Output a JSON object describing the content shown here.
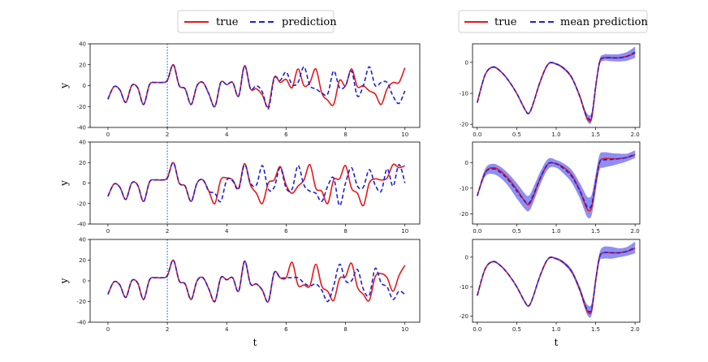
{
  "legends": {
    "left": {
      "true": "true",
      "prediction": "prediction"
    },
    "right": {
      "true": "true",
      "mean_prediction": "mean prediction"
    }
  },
  "colors": {
    "true": "#e41a1c",
    "prediction": "#1f1fd6",
    "band": "#7b7bf0",
    "divider": "#1f77b4"
  },
  "chart_data": [
    {
      "type": "line",
      "panel": "left-1",
      "xlabel": "",
      "ylabel": "y",
      "xlim": [
        -0.6,
        10.5
      ],
      "ylim": [
        -40,
        40
      ],
      "xticks": [
        "0",
        "2",
        "4",
        "6",
        "8",
        "10"
      ],
      "yticks": [
        "-40",
        "-20",
        "0",
        "20",
        "40"
      ],
      "vline_x": 2,
      "true_x": [
        0,
        0.2,
        0.4,
        0.6,
        0.8,
        1.0,
        1.2,
        1.4,
        1.6,
        1.8,
        2.0,
        2.2,
        2.4,
        2.6,
        2.8,
        3.0,
        3.2,
        3.4,
        3.6,
        3.8,
        4.0,
        4.2,
        4.4,
        4.6,
        4.8,
        5.0,
        5.2,
        5.4,
        5.6,
        5.8,
        6.0,
        6.2,
        6.4,
        6.6,
        6.8,
        7.0,
        7.2,
        7.4,
        7.6,
        7.8,
        8.0,
        8.2,
        8.4,
        8.6,
        8.8,
        9.0,
        9.2,
        9.4,
        9.6,
        9.8,
        10.0
      ],
      "true_y": [
        -13,
        -1,
        -4,
        -16,
        0,
        -2,
        -18,
        1,
        3,
        3,
        5,
        20,
        0,
        -3,
        -18,
        0,
        3,
        -8,
        -20,
        3,
        1,
        3,
        -10,
        19,
        -3,
        -3,
        -9,
        -20,
        8,
        3,
        6,
        -2,
        16,
        0,
        3,
        16,
        -7,
        -14,
        -18,
        5,
        0,
        16,
        -1,
        0,
        -5,
        -8,
        -18,
        -3,
        3,
        3,
        17
      ],
      "pred_x": [
        0,
        0.2,
        0.4,
        0.6,
        0.8,
        1.0,
        1.2,
        1.4,
        1.6,
        1.8,
        2.0,
        2.2,
        2.4,
        2.6,
        2.8,
        3.0,
        3.2,
        3.4,
        3.6,
        3.8,
        4.0,
        4.2,
        4.4,
        4.6,
        4.8,
        5.0,
        5.2,
        5.4,
        5.6,
        5.8,
        6.0,
        6.2,
        6.4,
        6.6,
        6.8,
        7.0,
        7.2,
        7.4,
        7.6,
        7.8,
        8.0,
        8.2,
        8.4,
        8.6,
        8.8,
        9.0,
        9.2,
        9.4,
        9.6,
        9.8,
        10.0
      ],
      "pred_y": [
        -13,
        -1,
        -4,
        -16,
        0,
        -2,
        -18,
        1,
        3,
        3,
        5,
        20,
        0,
        -3,
        -18,
        0,
        3,
        -8,
        -20,
        3,
        1,
        3,
        -10,
        19,
        -3,
        0,
        -6,
        -22,
        7,
        5,
        13,
        1,
        3,
        18,
        0,
        -3,
        -7,
        -8,
        14,
        -2,
        0,
        14,
        -10,
        0,
        18,
        0,
        3,
        3,
        -10,
        -17,
        -5
      ]
    },
    {
      "type": "line",
      "panel": "left-2",
      "xlabel": "",
      "ylabel": "y",
      "xlim": [
        -0.6,
        10.5
      ],
      "ylim": [
        -40,
        40
      ],
      "xticks": [
        "0",
        "2",
        "4",
        "6",
        "8",
        "10"
      ],
      "yticks": [
        "-40",
        "-20",
        "0",
        "20",
        "40"
      ],
      "vline_x": 2,
      "true_x": [
        0,
        0.2,
        0.4,
        0.6,
        0.8,
        1.0,
        1.2,
        1.4,
        1.6,
        1.8,
        2.0,
        2.2,
        2.4,
        2.6,
        2.8,
        3.0,
        3.2,
        3.4,
        3.6,
        3.8,
        4.0,
        4.2,
        4.4,
        4.6,
        4.8,
        5.0,
        5.2,
        5.4,
        5.6,
        5.8,
        6.0,
        6.2,
        6.4,
        6.6,
        6.8,
        7.0,
        7.2,
        7.4,
        7.6,
        7.8,
        8.0,
        8.2,
        8.4,
        8.6,
        8.8,
        9.0,
        9.2,
        9.4,
        9.6,
        9.8,
        10.0
      ],
      "true_y": [
        -13,
        -1,
        -4,
        -16,
        0,
        -2,
        -18,
        1,
        3,
        3,
        5,
        20,
        0,
        -3,
        -18,
        0,
        3,
        -8,
        -20,
        3,
        5,
        3,
        -5,
        19,
        -2,
        -10,
        -20,
        0,
        3,
        16,
        -2,
        -10,
        -3,
        3,
        18,
        -5,
        -8,
        -20,
        3,
        4,
        17,
        -5,
        -10,
        -22,
        0,
        4,
        3,
        5,
        18,
        15,
        17
      ],
      "pred_x": [
        0,
        0.2,
        0.4,
        0.6,
        0.8,
        1.0,
        1.2,
        1.4,
        1.6,
        1.8,
        2.0,
        2.2,
        2.4,
        2.6,
        2.8,
        3.0,
        3.2,
        3.4,
        3.6,
        3.8,
        4.0,
        4.2,
        4.4,
        4.6,
        4.8,
        5.0,
        5.2,
        5.4,
        5.6,
        5.8,
        6.0,
        6.2,
        6.4,
        6.6,
        6.8,
        7.0,
        7.2,
        7.4,
        7.6,
        7.8,
        8.0,
        8.2,
        8.4,
        8.6,
        8.8,
        9.0,
        9.2,
        9.4,
        9.6,
        9.8,
        10.0
      ],
      "pred_y": [
        -13,
        -1,
        -4,
        -16,
        0,
        -2,
        -18,
        1,
        3,
        3,
        5,
        20,
        0,
        -3,
        -18,
        0,
        3,
        -8,
        -10,
        -18,
        3,
        2,
        -6,
        18,
        0,
        -2,
        17,
        -6,
        -4,
        15,
        -5,
        -6,
        17,
        -2,
        -8,
        -10,
        -18,
        -3,
        5,
        -22,
        0,
        15,
        -3,
        -4,
        13,
        -2,
        -8,
        14,
        -3,
        18,
        0
      ]
    },
    {
      "type": "line",
      "panel": "left-3",
      "xlabel": "t",
      "ylabel": "y",
      "xlim": [
        -0.6,
        10.5
      ],
      "ylim": [
        -40,
        40
      ],
      "xticks": [
        "0",
        "2",
        "4",
        "6",
        "8",
        "10"
      ],
      "yticks": [
        "-40",
        "-20",
        "0",
        "20",
        "40"
      ],
      "vline_x": 2,
      "true_x": [
        0,
        0.2,
        0.4,
        0.6,
        0.8,
        1.0,
        1.2,
        1.4,
        1.6,
        1.8,
        2.0,
        2.2,
        2.4,
        2.6,
        2.8,
        3.0,
        3.2,
        3.4,
        3.6,
        3.8,
        4.0,
        4.2,
        4.4,
        4.6,
        4.8,
        5.0,
        5.2,
        5.4,
        5.6,
        5.8,
        6.0,
        6.2,
        6.4,
        6.6,
        6.8,
        7.0,
        7.2,
        7.4,
        7.6,
        7.8,
        8.0,
        8.2,
        8.4,
        8.6,
        8.8,
        9.0,
        9.2,
        9.4,
        9.6,
        9.8,
        10.0
      ],
      "true_y": [
        -13,
        -1,
        -4,
        -16,
        0,
        -2,
        -18,
        1,
        3,
        3,
        5,
        20,
        0,
        -3,
        -18,
        0,
        3,
        -8,
        -20,
        3,
        1,
        3,
        -10,
        19,
        -3,
        -3,
        -9,
        -20,
        8,
        3,
        3,
        18,
        -4,
        -4,
        -5,
        16,
        -5,
        -10,
        -19,
        2,
        4,
        17,
        -6,
        -13,
        -19,
        4,
        7,
        3,
        -10,
        5,
        15
      ],
      "pred_x": [
        0,
        0.2,
        0.4,
        0.6,
        0.8,
        1.0,
        1.2,
        1.4,
        1.6,
        1.8,
        2.0,
        2.2,
        2.4,
        2.6,
        2.8,
        3.0,
        3.2,
        3.4,
        3.6,
        3.8,
        4.0,
        4.2,
        4.4,
        4.6,
        4.8,
        5.0,
        5.2,
        5.4,
        5.6,
        5.8,
        6.0,
        6.2,
        6.4,
        6.6,
        6.8,
        7.0,
        7.2,
        7.4,
        7.6,
        7.8,
        8.0,
        8.2,
        8.4,
        8.6,
        8.8,
        9.0,
        9.2,
        9.4,
        9.6,
        9.8,
        10.0
      ],
      "pred_y": [
        -13,
        -1,
        -4,
        -16,
        0,
        -2,
        -18,
        1,
        3,
        3,
        5,
        20,
        0,
        -3,
        -18,
        0,
        3,
        -8,
        -20,
        3,
        1,
        3,
        -10,
        19,
        -3,
        -3,
        -9,
        -20,
        8,
        3,
        3,
        3,
        3,
        -2,
        -5,
        -3,
        -9,
        -20,
        -5,
        16,
        0,
        0,
        11,
        -8,
        -14,
        12,
        -2,
        -6,
        -18,
        -10,
        -13
      ]
    },
    {
      "type": "line",
      "panel": "right-1",
      "xlabel": "",
      "ylabel": "",
      "xlim": [
        -0.06,
        2.06
      ],
      "ylim": [
        -21,
        6
      ],
      "xticks": [
        "0.0",
        "0.5",
        "1.0",
        "1.5",
        "2.0"
      ],
      "yticks": [
        "-20",
        "-10",
        "0"
      ],
      "true_x": [
        0,
        0.1,
        0.2,
        0.3,
        0.4,
        0.5,
        0.6,
        0.65,
        0.7,
        0.8,
        0.9,
        1.0,
        1.1,
        1.2,
        1.3,
        1.35,
        1.4,
        1.45,
        1.5,
        1.55,
        1.6,
        1.7,
        1.8,
        1.9,
        2.0
      ],
      "true_y": [
        -13,
        -4,
        -1.5,
        -3,
        -6,
        -10,
        -15,
        -16.5,
        -14,
        -6,
        -0.5,
        -0.5,
        -2,
        -5,
        -11,
        -15,
        -18.5,
        -18,
        -8,
        0,
        1.5,
        1.5,
        1.5,
        2,
        3
      ],
      "mean_y": [
        -13,
        -4,
        -1.5,
        -3,
        -6,
        -10,
        -15,
        -16.5,
        -14,
        -6,
        -0.5,
        -0.5,
        -2,
        -5,
        -11,
        -15,
        -18,
        -17.5,
        -8,
        0,
        1.5,
        1.5,
        1.5,
        2,
        3.3
      ],
      "band": [
        0.3,
        0.3,
        0.3,
        0.3,
        0.3,
        0.3,
        0.3,
        0.3,
        0.3,
        0.3,
        0.3,
        0.3,
        0.4,
        0.5,
        0.7,
        0.9,
        1.2,
        1.5,
        1.4,
        1,
        1,
        1.1,
        1.2,
        1.4,
        1.8
      ]
    },
    {
      "type": "line",
      "panel": "right-2",
      "xlabel": "",
      "ylabel": "",
      "xlim": [
        -0.06,
        2.06
      ],
      "ylim": [
        -24,
        8
      ],
      "xticks": [
        "0.0",
        "0.5",
        "1.0",
        "1.5",
        "2.0"
      ],
      "yticks": [
        "-20",
        "-10",
        "0"
      ],
      "true_x": [
        0,
        0.1,
        0.2,
        0.3,
        0.4,
        0.5,
        0.6,
        0.65,
        0.7,
        0.8,
        0.9,
        1.0,
        1.1,
        1.2,
        1.3,
        1.35,
        1.4,
        1.45,
        1.5,
        1.55,
        1.6,
        1.7,
        1.8,
        1.9,
        2.0
      ],
      "true_y": [
        -13,
        -4,
        -2,
        -3.5,
        -6.5,
        -10.5,
        -15,
        -16.5,
        -14,
        -6,
        -0.5,
        -0.5,
        -2,
        -5,
        -11,
        -15,
        -18.5,
        -17.5,
        -8,
        0,
        1.5,
        1.5,
        1.5,
        2,
        3
      ],
      "mean_y": [
        -13,
        -4,
        -2.5,
        -4,
        -7,
        -11,
        -15,
        -16,
        -13.5,
        -6,
        -0.5,
        -0.5,
        -2.5,
        -5.5,
        -11,
        -14.5,
        -17.5,
        -16.5,
        -8,
        0,
        1,
        1.2,
        1.5,
        2,
        3.3
      ],
      "band": [
        0.5,
        1.5,
        2,
        2.2,
        2.5,
        3,
        3,
        3,
        3,
        2.5,
        2,
        1.5,
        2,
        2.5,
        3,
        3.5,
        4,
        4,
        3.5,
        3,
        3,
        2.5,
        2,
        1.5,
        1.5
      ]
    },
    {
      "type": "line",
      "panel": "right-3",
      "xlabel": "t",
      "ylabel": "",
      "xlim": [
        -0.06,
        2.06
      ],
      "ylim": [
        -22,
        6
      ],
      "xticks": [
        "0.0",
        "0.5",
        "1.0",
        "1.5",
        "2.0"
      ],
      "yticks": [
        "-20",
        "-10",
        "0"
      ],
      "true_x": [
        0,
        0.1,
        0.2,
        0.3,
        0.4,
        0.5,
        0.6,
        0.65,
        0.7,
        0.8,
        0.9,
        1.0,
        1.1,
        1.2,
        1.3,
        1.35,
        1.4,
        1.45,
        1.5,
        1.55,
        1.6,
        1.7,
        1.8,
        1.9,
        2.0
      ],
      "true_y": [
        -13,
        -4,
        -1.5,
        -3,
        -6,
        -10,
        -15,
        -16.5,
        -14,
        -6,
        -0.5,
        -0.5,
        -2,
        -5,
        -11,
        -15,
        -18.5,
        -18,
        -8,
        0,
        1.5,
        1.5,
        1.5,
        2,
        3
      ],
      "mean_y": [
        -13,
        -4,
        -1.5,
        -3,
        -6,
        -10,
        -15,
        -16.5,
        -14,
        -6,
        -0.5,
        -0.5,
        -2,
        -5,
        -11,
        -15,
        -18,
        -17.5,
        -8,
        0,
        1.5,
        1.5,
        1.5,
        2,
        3.3
      ],
      "band": [
        0.3,
        0.3,
        0.3,
        0.3,
        0.3,
        0.3,
        0.3,
        0.3,
        0.3,
        0.3,
        0.3,
        0.3,
        0.5,
        0.7,
        1,
        1.3,
        1.8,
        2,
        1.8,
        1.5,
        2,
        2,
        1.5,
        1.5,
        2
      ]
    }
  ]
}
